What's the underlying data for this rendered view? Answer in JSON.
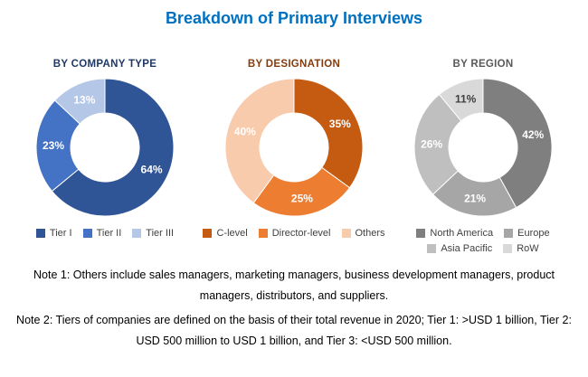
{
  "title": "Breakdown of Primary Interviews",
  "title_color": "#0070c0",
  "chart_data": [
    {
      "type": "pie",
      "donut": true,
      "title": "BY COMPANY TYPE",
      "title_color": "#1f3864",
      "labels": [
        "Tier I",
        "Tier II",
        "Tier III"
      ],
      "values": [
        64,
        23,
        13
      ],
      "unit": "%",
      "colors": [
        "#2f5597",
        "#4472c4",
        "#b4c7e7"
      ],
      "label_colors": [
        "#ffffff",
        "#ffffff",
        "#ffffff"
      ],
      "legend_position": "bottom",
      "start_angle_deg": 0,
      "direction": "clockwise"
    },
    {
      "type": "pie",
      "donut": true,
      "title": "BY DESIGNATION",
      "title_color": "#843c0c",
      "labels": [
        "C-level",
        "Director-level",
        "Others"
      ],
      "values": [
        35,
        25,
        40
      ],
      "unit": "%",
      "colors": [
        "#c55a11",
        "#ed7d31",
        "#f8cbad"
      ],
      "label_colors": [
        "#ffffff",
        "#ffffff",
        "#ffffff"
      ],
      "legend_position": "bottom",
      "start_angle_deg": 0,
      "direction": "clockwise"
    },
    {
      "type": "pie",
      "donut": true,
      "title": "BY REGION",
      "title_color": "#595959",
      "labels": [
        "North America",
        "Europe",
        "Asia Pacific",
        "RoW"
      ],
      "values": [
        42,
        21,
        26,
        11
      ],
      "unit": "%",
      "colors": [
        "#7f7f7f",
        "#a6a6a6",
        "#bfbfbf",
        "#d9d9d9"
      ],
      "label_colors": [
        "#ffffff",
        "#ffffff",
        "#ffffff",
        "#404040"
      ],
      "legend_position": "bottom",
      "start_angle_deg": 0,
      "direction": "clockwise"
    }
  ],
  "notes": [
    "Note 1: Others include sales managers, marketing managers, business development managers, product managers, distributors, and suppliers.",
    "Note 2: Tiers of companies are defined on the basis of their total revenue in 2020; Tier 1: >USD 1 billion, Tier 2: USD 500 million to USD 1 billion, and Tier 3: <USD 500 million."
  ]
}
